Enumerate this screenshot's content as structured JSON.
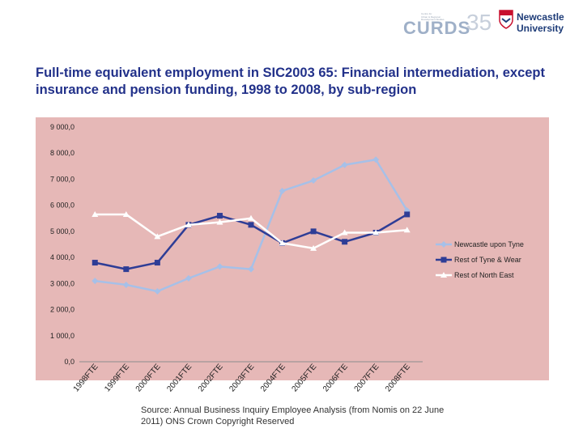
{
  "header": {
    "curds_word": "CURDS",
    "curds_number": "35",
    "curds_tagline": [
      "Centre for",
      "Urban & Regional",
      "Development Studies"
    ],
    "university_line1": "Newcastle",
    "university_line2": "University"
  },
  "title": "Full-time equivalent employment in SIC2003 65: Financial intermediation, except insurance and pension funding, 1998 to 2008, by sub-region",
  "source": "Source: Annual Business Inquiry Employee Analysis (from Nomis on 22 June 2011) ONS Crown Copyright Reserved",
  "chart_data": {
    "type": "line",
    "categories": [
      "1998FTE",
      "1999FTE",
      "2000FTE",
      "2001FTE",
      "2002FTE",
      "2003FTE",
      "2004FTE",
      "2005FTE",
      "2006FTE",
      "2007FTE",
      "2008FTE"
    ],
    "y_tick_labels": [
      "0,0",
      "1 000,0",
      "2 000,0",
      "3 000,0",
      "4 000,0",
      "5 000,0",
      "6 000,0",
      "7 000,0",
      "8 000,0",
      "9 000,0"
    ],
    "ylim": [
      0,
      9000
    ],
    "legend_position": "right",
    "plot_background": "#e6b8b7",
    "series": [
      {
        "name": "Newcastle upon Tyne",
        "color": "#a6c0e8",
        "marker": "diamond",
        "values": [
          3100,
          2950,
          2700,
          3200,
          3650,
          3550,
          6550,
          6950,
          7550,
          7750,
          5800
        ]
      },
      {
        "name": "Rest of Tyne & Wear",
        "color": "#2e3d96",
        "marker": "square",
        "values": [
          3800,
          3550,
          3800,
          5250,
          5600,
          5250,
          4550,
          5000,
          4600,
          4950,
          5650
        ]
      },
      {
        "name": "Rest of North East",
        "color": "#ffffff",
        "marker": "triangle",
        "values": [
          5650,
          5650,
          4800,
          5250,
          5350,
          5500,
          4550,
          4350,
          4950,
          4950,
          5050
        ]
      }
    ]
  }
}
